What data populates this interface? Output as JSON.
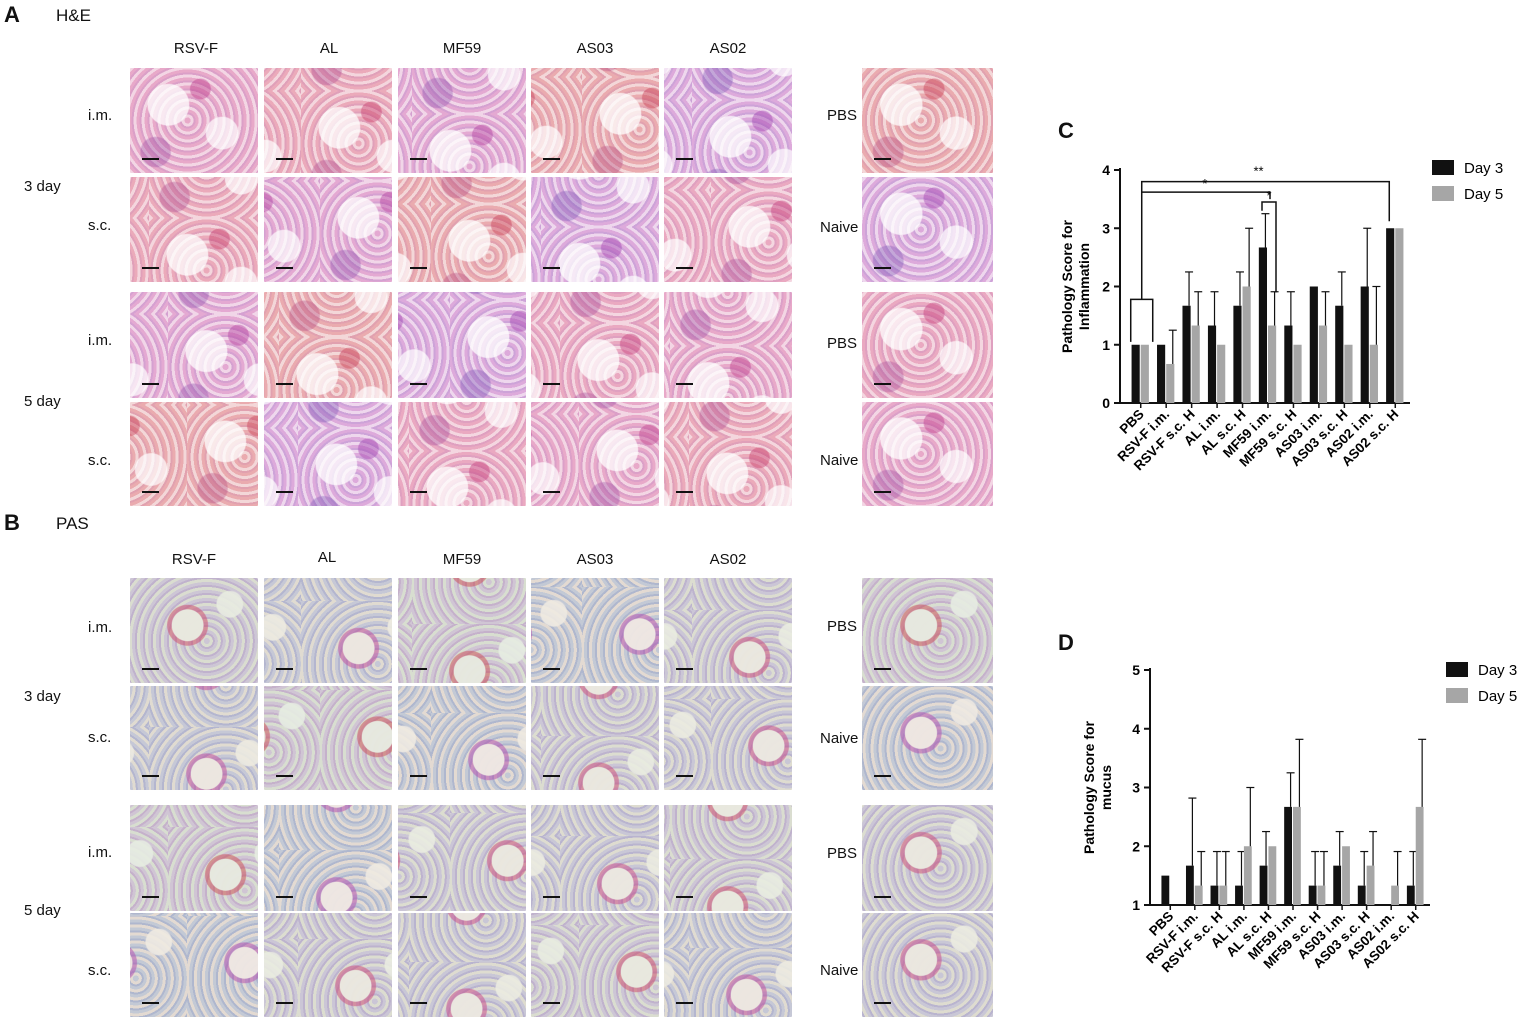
{
  "panels": {
    "A": {
      "letter": "A",
      "stain": "H&E"
    },
    "B": {
      "letter": "B",
      "stain": "PAS"
    },
    "C": {
      "letter": "C"
    },
    "D": {
      "letter": "D"
    }
  },
  "columns": [
    "RSV-F",
    "AL",
    "MF59",
    "AS03",
    "AS02"
  ],
  "row_labels": {
    "im": "i.m.",
    "sc": "s.c."
  },
  "day_labels": {
    "d3": "3 day",
    "d5": "5 day"
  },
  "control_labels": {
    "pbs": "PBS",
    "naive": "Naive"
  },
  "chart_data": [
    {
      "type": "bar",
      "panel": "C",
      "ylabel_line1": "Pathology Score for",
      "ylabel_line2": "Inflammation",
      "ylim": [
        0,
        4
      ],
      "yticks": [
        0,
        1,
        2,
        3,
        4
      ],
      "categories": [
        "PBS",
        "RSV-F i.m.",
        "RSV-F s.c. H",
        "AL i.m.",
        "AL s.c. H",
        "MF59 i.m.",
        "MF59 s.c. H",
        "AS03 i.m.",
        "AS03 s.c. H",
        "AS02 i.m.",
        "AS02 s.c. H"
      ],
      "series": [
        {
          "name": "Day 3",
          "color": "#111111",
          "values": [
            1,
            1,
            1.67,
            1.33,
            1.67,
            2.67,
            1.33,
            2.0,
            1.67,
            2.0,
            3.0
          ],
          "errors": [
            0,
            0,
            0.58,
            0.58,
            0.58,
            0.58,
            0.58,
            0,
            0.58,
            1.0,
            0
          ]
        },
        {
          "name": "Day 5",
          "color": "#a6a6a6",
          "values": [
            1,
            0.67,
            1.33,
            1.0,
            2.0,
            1.33,
            1.0,
            1.33,
            1.0,
            1.0,
            3.0
          ],
          "errors": [
            0,
            0.58,
            0.58,
            0,
            1.0,
            0.58,
            0,
            0.58,
            0,
            1.0,
            0
          ]
        }
      ],
      "significance": [
        "*",
        "*",
        "**"
      ],
      "grid": false,
      "legend": "top-right"
    },
    {
      "type": "bar",
      "panel": "D",
      "ylabel_line1": "Pathology Score for",
      "ylabel_line2": "mucus",
      "ylim": [
        1,
        5
      ],
      "yticks": [
        1,
        2,
        3,
        4,
        5
      ],
      "categories": [
        "PBS",
        "RSV-F i.m.",
        "RSV-F s.c. H",
        "AL i.m.",
        "AL s.c. H",
        "MF59 i.m.",
        "MF59 s.c. H",
        "AS03 i.m.",
        "AS03 s.c. H",
        "AS02 i.m.",
        "AS02 s.c. H"
      ],
      "series": [
        {
          "name": "Day 3",
          "color": "#111111",
          "values": [
            1.5,
            1.67,
            1.33,
            1.33,
            1.67,
            2.67,
            1.33,
            1.67,
            1.33,
            1.0,
            1.33
          ],
          "errors": [
            0,
            1.15,
            0.58,
            0.58,
            0.58,
            0.58,
            0.58,
            0.58,
            0.58,
            0,
            0.58
          ]
        },
        {
          "name": "Day 5",
          "color": "#a6a6a6",
          "values": [
            1.0,
            1.33,
            1.33,
            2.0,
            2.0,
            2.67,
            1.33,
            2.0,
            1.67,
            1.33,
            2.67
          ],
          "errors": [
            0,
            0.58,
            0.58,
            1.0,
            0,
            1.15,
            0.58,
            0,
            0.58,
            0.58,
            1.15
          ]
        }
      ],
      "grid": false,
      "legend": "top-right"
    }
  ]
}
